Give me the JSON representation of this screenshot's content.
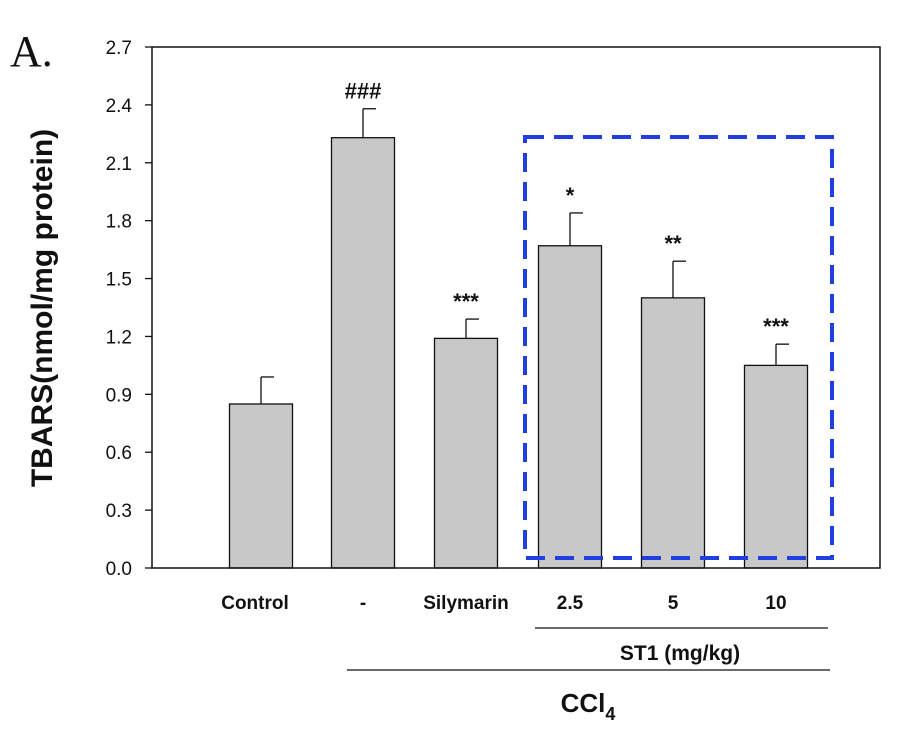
{
  "panel_label": "A.",
  "chart_data": {
    "type": "bar",
    "ylabel": "TBARS(nmol/mg protein)",
    "ylim": [
      0,
      2.7
    ],
    "yticks": [
      "0.0",
      "0.3",
      "0.6",
      "0.9",
      "1.2",
      "1.5",
      "1.8",
      "2.1",
      "2.4",
      "2.7"
    ],
    "categories": [
      "Control",
      "-",
      "Silymarin",
      "2.5",
      "5",
      "10"
    ],
    "values": [
      0.85,
      2.23,
      1.19,
      1.67,
      1.4,
      1.05
    ],
    "errors": [
      0.14,
      0.15,
      0.1,
      0.17,
      0.19,
      0.11
    ],
    "significance": [
      "",
      "###",
      "***",
      "*",
      "**",
      "***"
    ],
    "bar_color": "#c8c8c8",
    "highlight_color": "#1f3fe0",
    "group_labels": {
      "st1": "ST1 (mg/kg)",
      "ccl4_main": "CCl",
      "ccl4_sub": "4"
    }
  }
}
